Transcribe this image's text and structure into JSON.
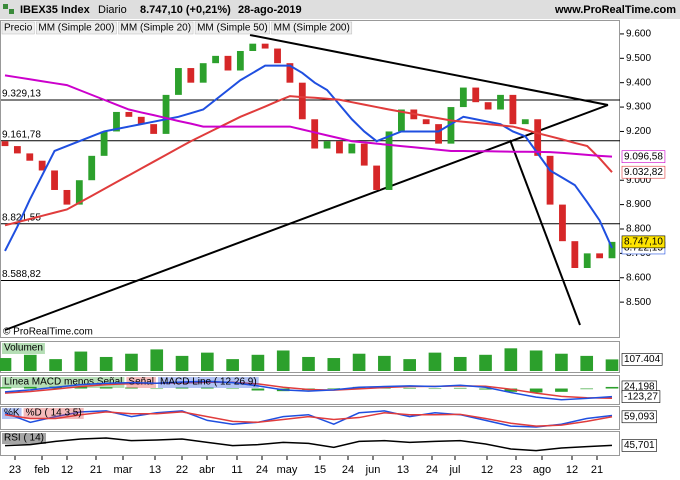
{
  "chart_data": {
    "type": "candlestick",
    "title": "IBEX35 Index",
    "period": "Diario",
    "price_text": "8.747,10 (+0,21%)",
    "date": "28-ago-2019",
    "source": "www.ProRealTime.com",
    "watermark": "© ProRealTime.com",
    "legend_prefix": [
      "Precio",
      "MM (Simple 200)"
    ],
    "legend_prefix_colors": [
      "#000000",
      "#cc00cc"
    ],
    "up_color": "#2ca02c",
    "down_color": "#d62728",
    "open": [
      9160,
      9140,
      9110,
      9080,
      9040,
      8960,
      8900,
      9000,
      9100,
      9200,
      9280,
      9260,
      9230,
      9190,
      9350,
      9460,
      9400,
      9480,
      9510,
      9450,
      9530,
      9560,
      9540,
      9480,
      9400,
      9250,
      9130,
      9160,
      9110,
      9150,
      9060,
      8960,
      9200,
      9290,
      9250,
      9230,
      9150,
      9300,
      9380,
      9320,
      9290,
      9350,
      9230,
      9250,
      9100,
      8900,
      8750,
      8640,
      8700,
      8680
    ],
    "close": [
      9140,
      9110,
      9080,
      9040,
      8960,
      8900,
      9000,
      9100,
      9200,
      9280,
      9260,
      9230,
      9190,
      9350,
      9460,
      9400,
      9480,
      9510,
      9450,
      9530,
      9560,
      9540,
      9480,
      9400,
      9250,
      9130,
      9160,
      9110,
      9150,
      9060,
      8960,
      9200,
      9290,
      9250,
      9230,
      9150,
      9300,
      9380,
      9320,
      9290,
      9350,
      9230,
      9250,
      9100,
      8900,
      8750,
      8640,
      8700,
      8680,
      8747.1
    ],
    "last_value_label": "8.747,10",
    "overlays": [
      {
        "name": "MM (Simple 20)",
        "color": "#1f4fe0",
        "last_value_label": "8.722,15",
        "values": [
          8710,
          8810,
          8920,
          9020,
          9120,
          9140,
          9160,
          9180,
          9200,
          9210,
          9220,
          9230,
          9240,
          9250,
          9260,
          9275,
          9290,
          9330,
          9370,
          9410,
          9440,
          9470,
          9470,
          9470,
          9440,
          9400,
          9370,
          9310,
          9250,
          9200,
          9160,
          9180,
          9200,
          9200,
          9200,
          9200,
          9230,
          9260,
          9250,
          9240,
          9230,
          9200,
          9180,
          9110,
          9040,
          9010,
          8980,
          8910,
          8835,
          8722.15
        ]
      },
      {
        "name": "MM (Simple 50)",
        "color": "#e03c3c",
        "last_value_label": "9.032,82",
        "values": [
          8815,
          8828,
          8841,
          8854,
          8867,
          8880,
          8908,
          8936,
          8964,
          8992,
          9020,
          9048,
          9076,
          9104,
          9132,
          9160,
          9185,
          9210,
          9235,
          9260,
          9281,
          9302,
          9324,
          9345,
          9341,
          9338,
          9334,
          9330,
          9320,
          9310,
          9300,
          9290,
          9281,
          9272,
          9263,
          9254,
          9245,
          9240,
          9235,
          9230,
          9225,
          9220,
          9207,
          9193,
          9180,
          9167,
          9153,
          9140,
          9090,
          9032.82
        ]
      },
      {
        "name": "MM (Simple 200)",
        "color": "#cc00cc",
        "last_value_label": "9.096,58",
        "values": [
          9430,
          9422,
          9414,
          9406,
          9398,
          9390,
          9370,
          9350,
          9330,
          9310,
          9290,
          9278,
          9267,
          9255,
          9243,
          9232,
          9220,
          9220,
          9220,
          9220,
          9220,
          9220,
          9220,
          9220,
          9208,
          9196,
          9184,
          9172,
          9160,
          9155,
          9150,
          9145,
          9140,
          9135,
          9130,
          9125,
          9120,
          9120,
          9119,
          9119,
          9118,
          9117,
          9117,
          9116,
          9115,
          9112,
          9108,
          9104,
          9100,
          9096.58
        ]
      }
    ],
    "ylim": [
      8357,
      9653
    ],
    "yticks": [
      {
        "value": 9600,
        "label": "9.600"
      },
      {
        "value": 9500,
        "label": "9.500"
      },
      {
        "value": 9400,
        "label": "9.400"
      },
      {
        "value": 9300,
        "label": "9.300"
      },
      {
        "value": 9200,
        "label": "9.200"
      },
      {
        "value": 9000,
        "label": "9.000"
      },
      {
        "value": 8900,
        "label": "8.900"
      },
      {
        "value": 8800,
        "label": "8.800"
      },
      {
        "value": 8700,
        "label": "8.700"
      },
      {
        "value": 8600,
        "label": "8.600"
      },
      {
        "value": 8500,
        "label": "8.500"
      }
    ],
    "levels": [
      {
        "value": 9329.13,
        "label": "9.329,13"
      },
      {
        "value": 9161.78,
        "label": "9.161,78"
      },
      {
        "value": 8821.55,
        "label": "8.821,55"
      },
      {
        "value": 8588.82,
        "label": "8.588,82"
      }
    ],
    "x_labels": [
      "23",
      "feb",
      "12",
      "21",
      "mar",
      "13",
      "22",
      "abr",
      "11",
      "24",
      "may",
      "15",
      "24",
      "jun",
      "13",
      "24",
      "jul",
      "12",
      "23",
      "ago",
      "12",
      "21"
    ],
    "panels": [
      {
        "ylim": [
          0,
          250000
        ],
        "series": [
          {
            "name": "Volumen",
            "kind": "bar",
            "color": "#2ca02c",
            "last_value_label": "107.404",
            "values": [
              120000,
              150000,
              110000,
              180000,
              130000,
              160000,
              200000,
              140000,
              170000,
              110000,
              150000,
              190000,
              130000,
              120000,
              160000,
              140000,
              110000,
              170000,
              130000,
              150000,
              210000,
              190000,
              160000,
              140000,
              107404
            ]
          }
        ]
      },
      {
        "ylim": [
          -220,
          160
        ],
        "series": [
          {
            "name": "Línea MACD menos Señal",
            "kind": "bar",
            "color": "#2ca02c",
            "last_value_label": "24,198",
            "values": [
              20,
              25,
              30,
              30,
              20,
              15,
              0,
              15,
              15,
              -5,
              -30,
              -40,
              -25,
              5,
              25,
              15,
              10,
              -2,
              10,
              -15,
              -50,
              -60,
              -50,
              -10,
              24.198
            ]
          },
          {
            "name": "Señal",
            "kind": "line",
            "color": "#e03c3c",
            "values": [
              -70,
              -45,
              -10,
              30,
              60,
              75,
              80,
              85,
              95,
              95,
              70,
              20,
              -15,
              -25,
              -5,
              15,
              30,
              32,
              40,
              35,
              -10,
              -70,
              -120,
              -140,
              -147.468
            ]
          },
          {
            "name": "MACD Line ( 12 26 9)",
            "kind": "line",
            "color": "#1f4fe0",
            "last_value_label": "-123,27",
            "values": [
              -50,
              -20,
              20,
              60,
              80,
              90,
              80,
              100,
              110,
              90,
              40,
              -20,
              -40,
              -20,
              20,
              30,
              40,
              30,
              50,
              20,
              -60,
              -130,
              -170,
              -150,
              -123.27
            ]
          }
        ]
      },
      {
        "ylim": [
          0,
          100
        ],
        "series": [
          {
            "name": "%K",
            "kind": "line",
            "color": "#1f4fe0",
            "values": [
              80,
              30,
              60,
              85,
              90,
              60,
              80,
              90,
              40,
              20,
              30,
              60,
              70,
              20,
              80,
              90,
              60,
              80,
              70,
              40,
              10,
              5,
              20,
              50,
              66
            ]
          },
          {
            "name": "%D ( 14 3 5)",
            "kind": "line",
            "color": "#e03c3c",
            "last_value_label": "59,093",
            "values": [
              70,
              50,
              50,
              70,
              85,
              75,
              75,
              85,
              60,
              35,
              30,
              45,
              60,
              45,
              55,
              80,
              70,
              70,
              72,
              50,
              25,
              10,
              15,
              35,
              59.093
            ]
          }
        ]
      },
      {
        "ylim": [
          20,
          80
        ],
        "series": [
          {
            "name": "RSI ( 14)",
            "kind": "line",
            "color": "#000000",
            "last_value_label": "45,701",
            "values": [
              45,
              48,
              58,
              65,
              68,
              60,
              62,
              65,
              55,
              45,
              48,
              55,
              52,
              40,
              58,
              60,
              55,
              58,
              60,
              50,
              35,
              30,
              38,
              42,
              45.701
            ]
          }
        ]
      }
    ]
  }
}
